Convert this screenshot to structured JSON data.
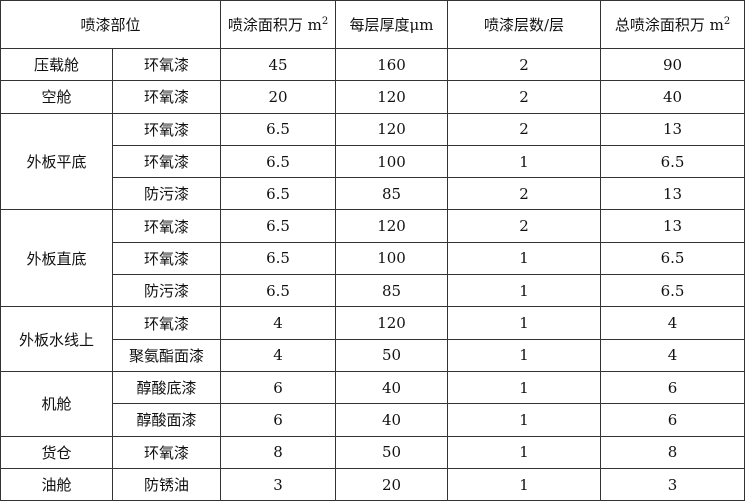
{
  "headers": {
    "part": "喷漆部位",
    "area": "喷涂面积万 m",
    "area_sup": "2",
    "thickness": "每层厚度μm",
    "layers": "喷漆层数/层",
    "total": "总喷涂面积万 m",
    "total_sup": "2"
  },
  "groups": [
    {
      "part": "压载舱",
      "rows": [
        {
          "coating": "环氧漆",
          "area": "45",
          "thickness": "160",
          "layers": "2",
          "total": "90"
        }
      ]
    },
    {
      "part": "空舱",
      "rows": [
        {
          "coating": "环氧漆",
          "area": "20",
          "thickness": "120",
          "layers": "2",
          "total": "40"
        }
      ]
    },
    {
      "part": "外板平底",
      "rows": [
        {
          "coating": "环氧漆",
          "area": "6.5",
          "thickness": "120",
          "layers": "2",
          "total": "13"
        },
        {
          "coating": "环氧漆",
          "area": "6.5",
          "thickness": "100",
          "layers": "1",
          "total": "6.5"
        },
        {
          "coating": "防污漆",
          "area": "6.5",
          "thickness": "85",
          "layers": "2",
          "total": "13"
        }
      ]
    },
    {
      "part": "外板直底",
      "rows": [
        {
          "coating": "环氧漆",
          "area": "6.5",
          "thickness": "120",
          "layers": "2",
          "total": "13"
        },
        {
          "coating": "环氧漆",
          "area": "6.5",
          "thickness": "100",
          "layers": "1",
          "total": "6.5"
        },
        {
          "coating": "防污漆",
          "area": "6.5",
          "thickness": "85",
          "layers": "1",
          "total": "6.5"
        }
      ]
    },
    {
      "part": "外板水线上",
      "rows": [
        {
          "coating": "环氧漆",
          "area": "4",
          "thickness": "120",
          "layers": "1",
          "total": "4"
        },
        {
          "coating": "聚氨酯面漆",
          "area": "4",
          "thickness": "50",
          "layers": "1",
          "total": "4"
        }
      ]
    },
    {
      "part": "机舱",
      "rows": [
        {
          "coating": "醇酸底漆",
          "area": "6",
          "thickness": "40",
          "layers": "1",
          "total": "6"
        },
        {
          "coating": "醇酸面漆",
          "area": "6",
          "thickness": "40",
          "layers": "1",
          "total": "6"
        }
      ]
    },
    {
      "part": "货仓",
      "rows": [
        {
          "coating": "环氧漆",
          "area": "8",
          "thickness": "50",
          "layers": "1",
          "total": "8"
        }
      ]
    },
    {
      "part": "油舱",
      "rows": [
        {
          "coating": "防锈油",
          "area": "3",
          "thickness": "20",
          "layers": "1",
          "total": "3"
        }
      ]
    }
  ]
}
